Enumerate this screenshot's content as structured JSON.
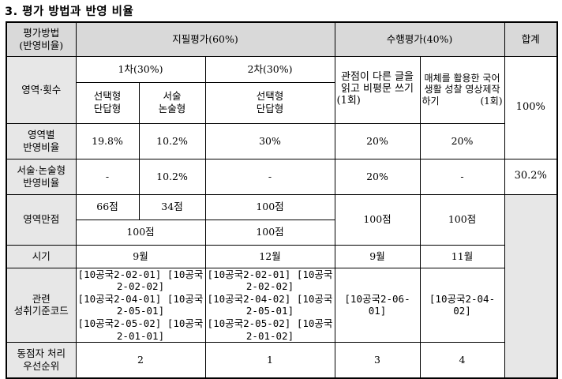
{
  "title": "3. 평가 방법과 반영 비율",
  "header": {
    "method_label": "평가방법\n(반영비율)",
    "written": "지필평가(60%)",
    "performance": "수행평가(40%)",
    "total": "합계"
  },
  "area_count": {
    "label": "영역·횟수",
    "first": "1차(30%)",
    "second": "2차(30%)",
    "first_mc": "선택형\n단답형",
    "first_essay": "서술\n논술형",
    "second_mc": "선택형\n단답형",
    "perf1": "관점이 다른 글을 읽고 비평문 쓰기 (1회)",
    "perf2": "매체를 활용한 국어 생활 성찰 영상제작하기 (1회)"
  },
  "ratio": {
    "label": "영역별\n반영비율",
    "v1": "19.8%",
    "v2": "10.2%",
    "v3": "30%",
    "v4": "20%",
    "v5": "20%",
    "total": "100%"
  },
  "essay_ratio": {
    "label": "서술·논술형\n반영비율",
    "v1": "-",
    "v2": "10.2%",
    "v3": "-",
    "v4": "20%",
    "v5": "-",
    "total": "30.2%"
  },
  "full_score": {
    "label": "영역만점",
    "a": "66점",
    "b": "34점",
    "c": "100점",
    "first_total": "100점",
    "second_total": "100점",
    "perf1": "100점",
    "perf2": "100점"
  },
  "timing": {
    "label": "시기",
    "first": "9월",
    "second": "12월",
    "perf1": "9월",
    "perf2": "11월"
  },
  "standards": {
    "label": "관련\n성취기준코드",
    "first": "[10공국2-02-01] [10공국2-02-02]\n[10공국2-04-01] [10공국2-05-01]\n[10공국2-05-02] [10공국2-01-01]",
    "second": "[10공국2-02-01] [10공국2-02-02]\n[10공국2-04-02] [10공국2-05-01]\n[10공국2-05-02] [10공국2-01-02]",
    "perf1": "[10공국2-06-01]",
    "perf2": "[10공국2-04-02]"
  },
  "tie_break": {
    "label": "동점자 처리\n우선순위",
    "first": "2",
    "second": "1",
    "perf1": "3",
    "perf2": "4"
  }
}
